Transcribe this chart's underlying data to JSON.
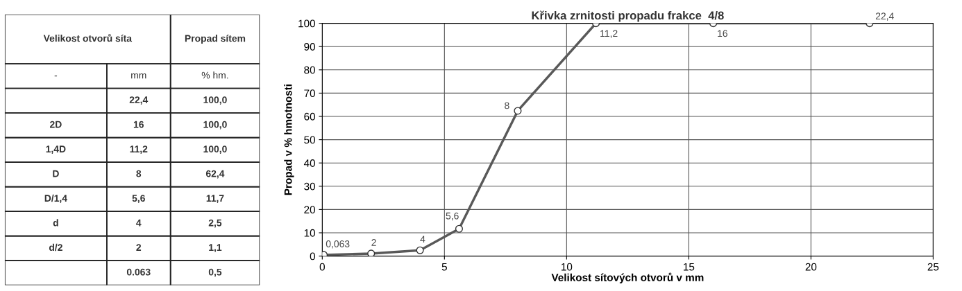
{
  "chart_data": [
    {
      "type": "other",
      "categories": [
        "-",
        null,
        "2D",
        "1,4D",
        "D",
        "D/1,4",
        "d",
        "d/2",
        null
      ],
      "annotations": [
        "Velikost otvorů síta",
        "Propad sítem",
        "mm",
        "% hm.",
        "22,4",
        "100,0",
        "16",
        "100,0",
        "11,2",
        "100,0",
        "8",
        "62,4",
        "5,6",
        "11,7",
        "4",
        "2,5",
        "2",
        "1,1",
        "0.063",
        "0,5"
      ]
    },
    {
      "type": "line",
      "title": "Křivka zrnitosti propadu frakce  4/8",
      "xlabel": "Velikost sítových otvorů v mm",
      "ylabel": "Propad v % hmotnosti",
      "x": [
        0.063,
        2,
        4,
        5.6,
        8,
        11.2,
        16,
        22.4
      ],
      "values": [
        0.5,
        1.1,
        2.5,
        11.7,
        62.4,
        100,
        100,
        100
      ],
      "color": "#595959",
      "marker": "circle",
      "line_style": "solid",
      "xlim": [
        0,
        25
      ],
      "xticks": [
        0,
        5,
        10,
        15,
        20,
        25
      ],
      "ylim": [
        0,
        100
      ],
      "yticks": [
        0,
        10,
        20,
        30,
        40,
        50,
        60,
        70,
        80,
        90,
        100
      ],
      "grid": true,
      "annotations": [
        {
          "text": "0,063",
          "x": 0.063,
          "y": 0.5
        },
        {
          "text": "2",
          "x": 2,
          "y": 1.1
        },
        {
          "text": "4",
          "x": 4,
          "y": 2.5
        },
        {
          "text": "5,6",
          "x": 5.6,
          "y": 11.7
        },
        {
          "text": "8",
          "x": 8,
          "y": 62.4
        },
        {
          "text": "11,2",
          "x": 11.2,
          "y": 100
        },
        {
          "text": "16",
          "x": 16,
          "y": 100
        },
        {
          "text": "22,4",
          "x": 22.4,
          "y": 100
        }
      ]
    }
  ]
}
